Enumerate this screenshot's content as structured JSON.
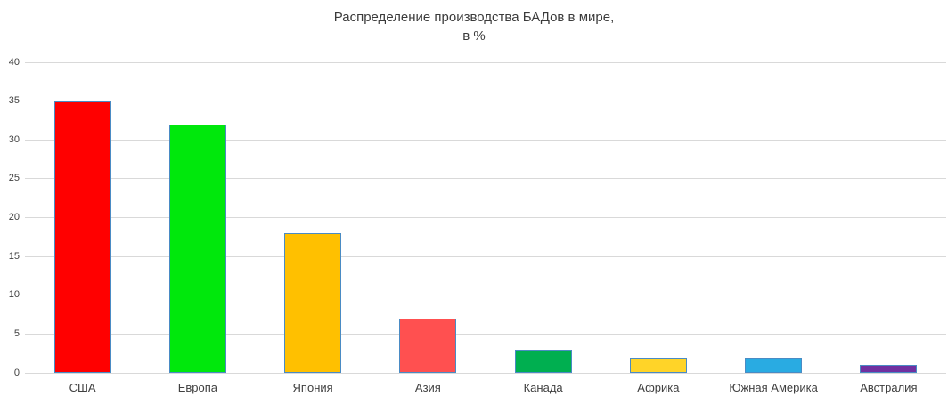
{
  "title": {
    "line1": "Распределение производства БАДов в мире,",
    "line2": "в %"
  },
  "chart_data": {
    "type": "bar",
    "title": "Распределение производства БАДов в мире, в %",
    "categories": [
      "США",
      "Европа",
      "Япония",
      "Азия",
      "Канада",
      "Африка",
      "Южная Америка",
      "Австралия"
    ],
    "values": [
      35,
      32,
      18,
      7,
      3,
      2,
      2,
      1
    ],
    "bar_colors": [
      "#FF0000",
      "#00E80C",
      "#FFC000",
      "#FF5050",
      "#00AF50",
      "#FFD428",
      "#29ABE2",
      "#7030A0"
    ],
    "bar_border_color": "#4A8BC4",
    "xlabel": "",
    "ylabel": "",
    "ylim": [
      0,
      40
    ],
    "yticks": [
      0,
      5,
      10,
      15,
      20,
      25,
      30,
      35,
      40
    ],
    "grid": true,
    "gridline_color": "#D9D9D9",
    "axis_line_color": "#D9D9D9",
    "text_color": "#404040",
    "legend": "none",
    "background_color": "#FFFFFF"
  }
}
